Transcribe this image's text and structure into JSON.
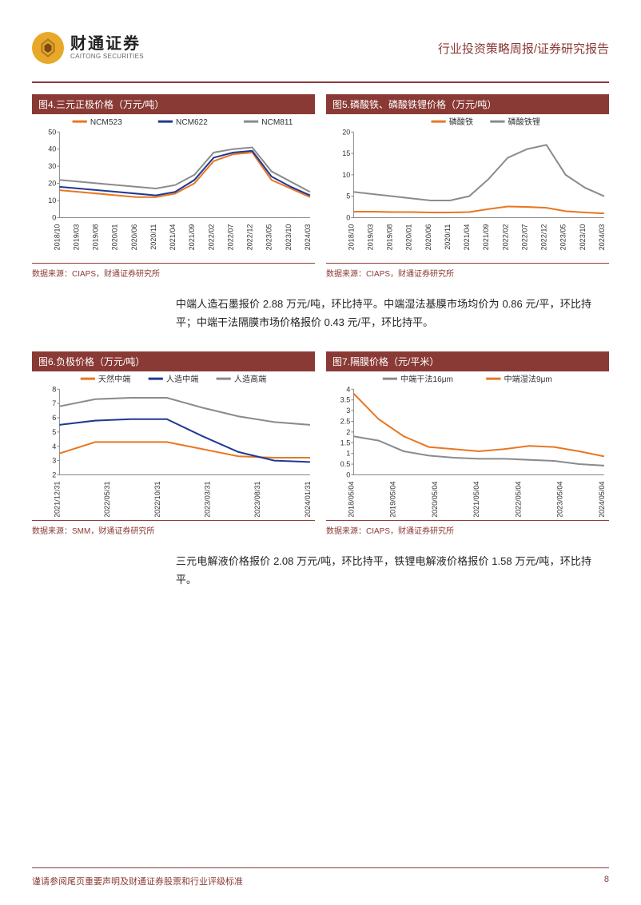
{
  "header": {
    "logo_cn": "财通证券",
    "logo_en": "CAITONG SECURITIES",
    "title": "行业投资策略周报/证券研究报告"
  },
  "footer": {
    "disclaimer": "谨请参阅尾页重要声明及财通证券股票和行业评级标准",
    "page_num": "8"
  },
  "para1": "中端人造石墨报价 2.88 万元/吨，环比持平。中端湿法基膜市场均价为 0.86 元/平，环比持平；中端干法隔膜市场价格报价 0.43 元/平，环比持平。",
  "para2": "三元电解液价格报价 2.08 万元/吨，环比持平，铁锂电解液价格报价 1.58 万元/吨，环比持平。",
  "chart4": {
    "type": "line",
    "title": "图4.三元正极价格（万元/吨）",
    "source": "数据来源：CIAPS，财通证券研究所",
    "x_labels": [
      "2018/10",
      "2019/03",
      "2019/08",
      "2020/01",
      "2020/06",
      "2020/11",
      "2021/04",
      "2021/09",
      "2022/02",
      "2022/07",
      "2022/12",
      "2023/05",
      "2023/10",
      "2024/03"
    ],
    "ylim": [
      0,
      50
    ],
    "ytick_step": 10,
    "series": [
      {
        "name": "NCM523",
        "color": "#e87722",
        "values": [
          16,
          15,
          14,
          13,
          12,
          12,
          14,
          20,
          33,
          37,
          38,
          22,
          17,
          12
        ]
      },
      {
        "name": "NCM622",
        "color": "#1f3a93",
        "values": [
          18,
          17,
          16,
          15,
          14,
          13,
          15,
          22,
          35,
          38,
          39,
          24,
          18,
          13
        ]
      },
      {
        "name": "NCM811",
        "color": "#8b8b8b",
        "values": [
          22,
          21,
          20,
          19,
          18,
          17,
          19,
          25,
          38,
          40,
          41,
          27,
          21,
          15
        ]
      }
    ],
    "background_color": "#ffffff",
    "axis_color": "#888888"
  },
  "chart5": {
    "type": "line",
    "title": "图5.磷酸铁、磷酸铁锂价格（万元/吨）",
    "source": "数据来源：CIAPS，财通证券研究所",
    "x_labels": [
      "2018/10",
      "2019/03",
      "2019/08",
      "2020/01",
      "2020/06",
      "2020/11",
      "2021/04",
      "2021/09",
      "2022/02",
      "2022/07",
      "2022/12",
      "2023/05",
      "2023/10",
      "2024/03"
    ],
    "ylim": [
      0,
      20
    ],
    "ytick_step": 5,
    "series": [
      {
        "name": "磷酸铁",
        "color": "#e87722",
        "values": [
          1.4,
          1.4,
          1.3,
          1.3,
          1.2,
          1.2,
          1.3,
          2.0,
          2.6,
          2.5,
          2.3,
          1.5,
          1.2,
          1.0
        ]
      },
      {
        "name": "磷酸铁锂",
        "color": "#8b8b8b",
        "values": [
          6,
          5.5,
          5,
          4.5,
          4,
          4,
          5,
          9,
          14,
          16,
          17,
          10,
          7,
          5
        ]
      }
    ],
    "background_color": "#ffffff",
    "axis_color": "#888888"
  },
  "chart6": {
    "type": "line",
    "title": "图6.负极价格（万元/吨）",
    "source": "数据来源：SMM，财通证券研究所",
    "x_labels": [
      "2021/12/31",
      "2022/05/31",
      "2022/10/31",
      "2023/03/31",
      "2023/08/31",
      "2024/01/31"
    ],
    "ylim": [
      2,
      8
    ],
    "ytick_step": 1,
    "series": [
      {
        "name": "天然中端",
        "color": "#e87722",
        "values": [
          3.5,
          4.3,
          4.3,
          4.3,
          3.8,
          3.3,
          3.2,
          3.2
        ]
      },
      {
        "name": "人造中端",
        "color": "#1f3a93",
        "values": [
          5.5,
          5.8,
          5.9,
          5.9,
          4.7,
          3.6,
          3.0,
          2.9
        ]
      },
      {
        "name": "人造高端",
        "color": "#8b8b8b",
        "values": [
          6.8,
          7.3,
          7.4,
          7.4,
          6.7,
          6.1,
          5.7,
          5.5
        ]
      }
    ],
    "background_color": "#ffffff",
    "axis_color": "#888888"
  },
  "chart7": {
    "type": "line",
    "title": "图7.隔膜价格（元/平米）",
    "source": "数据来源：CIAPS，财通证券研究所",
    "x_labels": [
      "2018/05/04",
      "2019/05/04",
      "2020/05/04",
      "2021/05/04",
      "2022/05/04",
      "2023/05/04",
      "2024/05/04"
    ],
    "ylim": [
      0,
      4
    ],
    "ytick_step": 0.5,
    "series": [
      {
        "name": "中端干法16μm",
        "color": "#8b8b8b",
        "values": [
          1.8,
          1.6,
          1.1,
          0.9,
          0.8,
          0.75,
          0.75,
          0.7,
          0.65,
          0.5,
          0.43
        ]
      },
      {
        "name": "中端湿法9μm",
        "color": "#e87722",
        "values": [
          3.8,
          2.6,
          1.8,
          1.3,
          1.2,
          1.1,
          1.2,
          1.35,
          1.3,
          1.1,
          0.86
        ]
      }
    ],
    "background_color": "#ffffff",
    "axis_color": "#888888"
  }
}
